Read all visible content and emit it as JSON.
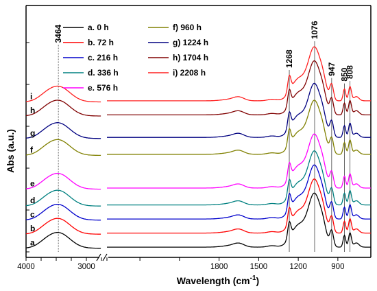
{
  "chart_data": {
    "type": "line",
    "xlabel": "Wavelength (cm-1)",
    "xlabel_parts": {
      "main": "Wavelength (cm",
      "sup": "-1",
      "close": ")"
    },
    "ylabel": "Abs (a.u.)",
    "x_axis": {
      "reversed": true,
      "broken": true,
      "segments": [
        [
          4000,
          2750
        ],
        [
          2650,
          650
        ]
      ]
    },
    "x_ticks": [
      4000,
      3000,
      1800,
      1500,
      1200,
      900
    ],
    "legend_placement": "top-center",
    "annotations": [
      {
        "label": "3464",
        "x": 3464
      },
      {
        "label": "1268",
        "x": 1268
      },
      {
        "label": "1076",
        "x": 1076
      },
      {
        "label": "947",
        "x": 947
      },
      {
        "label": "850",
        "x": 850
      },
      {
        "label": "808",
        "x": 808
      }
    ],
    "series": [
      {
        "legend": "a. 0 h",
        "curve_label": "a",
        "color": "#000000",
        "offset": 0.0
      },
      {
        "legend": "b. 72 h",
        "curve_label": "b",
        "color": "#ff0000",
        "offset": 0.5
      },
      {
        "legend": "c. 216 h",
        "curve_label": "c",
        "color": "#0000cc",
        "offset": 1.0
      },
      {
        "legend": "d. 336 h",
        "curve_label": "d",
        "color": "#008080",
        "offset": 1.5
      },
      {
        "legend": "e. 576 h",
        "curve_label": "e",
        "color": "#ff00ff",
        "offset": 2.1
      },
      {
        "legend": "f) 960 h",
        "curve_label": "f",
        "color": "#808000",
        "offset": 3.3
      },
      {
        "legend": "g) 1224 h",
        "curve_label": "g",
        "color": "#000080",
        "offset": 3.9
      },
      {
        "legend": "h) 1704 h",
        "curve_label": "h",
        "color": "#800000",
        "offset": 4.7
      },
      {
        "legend": "i) 2208 h",
        "curve_label": "i",
        "color": "#ff2020",
        "offset": 5.2
      }
    ]
  }
}
